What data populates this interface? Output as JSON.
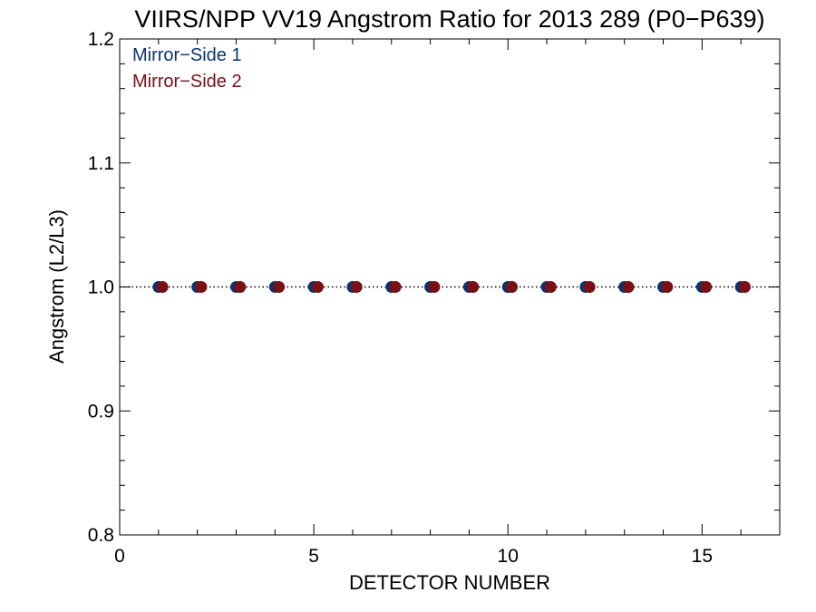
{
  "chart_data": {
    "type": "scatter",
    "title": "VIIRS/NPP VV19 Angstrom Ratio for 2013 289 (P0−P639)",
    "xlabel": "DETECTOR NUMBER",
    "ylabel": "Angstrom (L2/L3)",
    "xlim": [
      0,
      17
    ],
    "ylim": [
      0.8,
      1.2
    ],
    "xticks": [
      0,
      5,
      10,
      15
    ],
    "xtick_labels": [
      "0",
      "5",
      "10",
      "15"
    ],
    "yticks": [
      0.8,
      0.9,
      1.0,
      1.1,
      1.2
    ],
    "ytick_labels": [
      "0.8",
      "0.9",
      "1.0",
      "1.1",
      "1.2"
    ],
    "reference_line": {
      "y": 1.0,
      "style": "dotted",
      "color": "#000000"
    },
    "legend_position": "top-left",
    "grid": false,
    "series": [
      {
        "name": "Mirror−Side 1",
        "color": "#0a3470",
        "x": [
          1,
          2,
          3,
          4,
          5,
          6,
          7,
          8,
          9,
          10,
          11,
          12,
          13,
          14,
          15,
          16
        ],
        "y": [
          1.0,
          1.0,
          1.0,
          1.0,
          1.0,
          1.0,
          1.0,
          1.0,
          1.0,
          1.0,
          1.0,
          1.0,
          1.0,
          1.0,
          1.0,
          1.0
        ]
      },
      {
        "name": "Mirror−Side 2",
        "color": "#7a0f14",
        "x": [
          1.1,
          2.1,
          3.1,
          4.1,
          5.1,
          6.1,
          7.1,
          8.1,
          9.1,
          10.1,
          11.1,
          12.1,
          13.1,
          14.1,
          15.1,
          16.1
        ],
        "y": [
          1.0,
          1.0,
          1.0,
          1.0,
          1.0,
          1.0,
          1.0,
          1.0,
          1.0,
          1.0,
          1.0,
          1.0,
          1.0,
          1.0,
          1.0,
          1.0
        ]
      }
    ]
  }
}
